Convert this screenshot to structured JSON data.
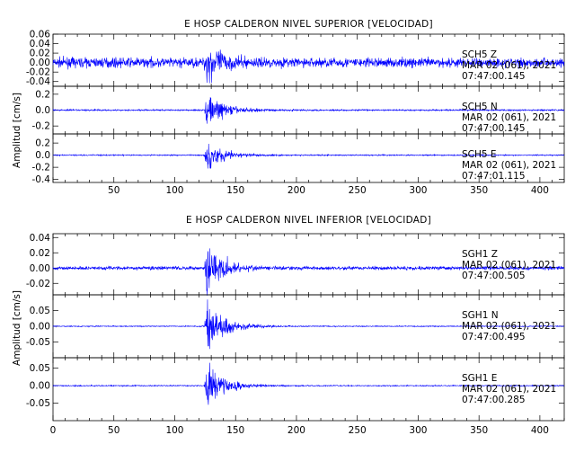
{
  "chart_data": [
    {
      "type": "line",
      "title": "E HOSP CALDERON NIVEL SUPERIOR [VELOCIDAD]",
      "ylabel": "Amplitud [cm/s]",
      "xlabel": "",
      "xlim": [
        0,
        420
      ],
      "xticks": [
        50,
        100,
        150,
        200,
        250,
        300,
        350,
        400
      ],
      "color": "#0000ff",
      "traces": [
        {
          "station": "SCH5",
          "component": "Z",
          "date": "MAR 02 (061), 2021",
          "time": "07:47:00.145",
          "ylim": [
            -0.05,
            0.06
          ],
          "yticks": [
            "0.06",
            "0.04",
            "0.02",
            "0.00",
            "-0.02",
            "-0.04"
          ],
          "yticks_extra": [
            "0.04",
            "0.02",
            "0.02",
            "0.04"
          ],
          "ytick_values": [
            0.06,
            0.04,
            0.02,
            0.0,
            -0.02,
            -0.04
          ],
          "noise": 0.013,
          "peak": 0.055,
          "onset": 124,
          "decay": 10
        },
        {
          "station": "SCH5",
          "component": "N",
          "date": "MAR 02 (061), 2021",
          "time": "07:47:00.145",
          "ylim": [
            -0.3,
            0.3
          ],
          "yticks": [
            "0.2",
            "0.0",
            "-0.2"
          ],
          "ytick_values": [
            0.2,
            0.0,
            -0.2
          ],
          "noise": 0.012,
          "peak": 0.26,
          "onset": 124,
          "decay": 14
        },
        {
          "station": "SCH5",
          "component": "E",
          "date": "MAR 02 (061), 2021",
          "time": "07:47:01.115",
          "ylim": [
            -0.45,
            0.35
          ],
          "yticks": [
            "0.2",
            "0.0",
            "-0.2",
            "-0.4"
          ],
          "ytick_values": [
            0.2,
            0.0,
            -0.2,
            -0.4
          ],
          "noise": 0.012,
          "peak": 0.3,
          "onset": 124,
          "decay": 14
        }
      ]
    },
    {
      "type": "line",
      "title": "E HOSP CALDERON NIVEL INFERIOR [VELOCIDAD]",
      "ylabel": "Amplitud [cm/s]",
      "xlabel": "",
      "xlim": [
        0,
        420
      ],
      "xticks": [
        0,
        50,
        100,
        150,
        200,
        250,
        300,
        350,
        400
      ],
      "color": "#0000ff",
      "traces": [
        {
          "station": "SGH1",
          "component": "Z",
          "date": "MAR 02 (061), 2021",
          "time": "07:47:00.505",
          "ylim": [
            -0.035,
            0.045
          ],
          "yticks": [
            "0.04",
            "0.02",
            "0.00",
            "-0.02"
          ],
          "ytick_values": [
            0.04,
            0.02,
            0.0,
            -0.02
          ],
          "noise": 0.003,
          "peak": 0.04,
          "onset": 124,
          "decay": 12
        },
        {
          "station": "SGH1",
          "component": "N",
          "date": "MAR 02 (061), 2021",
          "time": "07:47:00.495",
          "ylim": [
            -0.1,
            0.1
          ],
          "yticks": [
            "0.05",
            "0.00",
            "-0.05"
          ],
          "ytick_values": [
            0.05,
            0.0,
            -0.05
          ],
          "noise": 0.002,
          "peak": 0.085,
          "onset": 124,
          "decay": 14
        },
        {
          "station": "SGH1",
          "component": "E",
          "date": "MAR 02 (061), 2021",
          "time": "07:47:00.285",
          "ylim": [
            -0.1,
            0.08
          ],
          "yticks": [
            "0.05",
            "0.00",
            "-0.05"
          ],
          "ytick_values": [
            0.05,
            0.0,
            -0.05
          ],
          "noise": 0.002,
          "peak": 0.075,
          "onset": 124,
          "decay": 14
        }
      ]
    }
  ]
}
